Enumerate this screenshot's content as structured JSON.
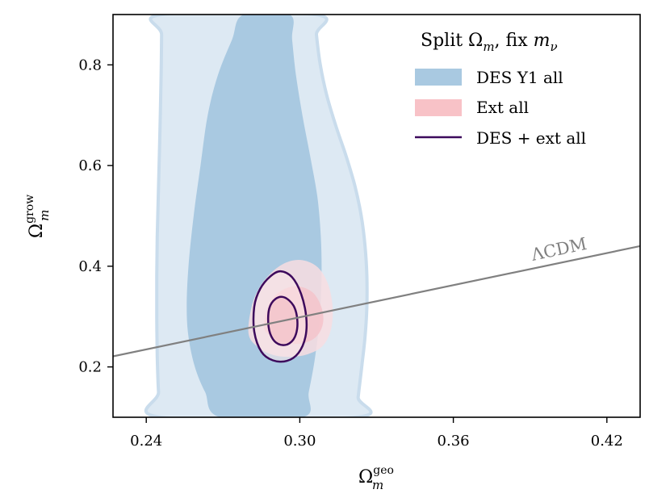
{
  "chart_data": {
    "type": "contour",
    "title": "",
    "xlabel_base": "Ω",
    "xlabel_sub": "m",
    "xlabel_sup": "geo",
    "ylabel_base": "Ω",
    "ylabel_sub": "m",
    "ylabel_sup": "grow",
    "xlim": [
      0.227,
      0.433
    ],
    "ylim": [
      0.1,
      0.9
    ],
    "xticks": [
      0.24,
      0.3,
      0.36,
      0.42
    ],
    "xtick_labels": [
      "0.24",
      "0.30",
      "0.36",
      "0.42"
    ],
    "yticks": [
      0.2,
      0.4,
      0.6,
      0.8
    ],
    "ytick_labels": [
      "0.2",
      "0.4",
      "0.6",
      "0.8"
    ],
    "legend": {
      "title_text": "Split Ω",
      "title_sub": "m",
      "title_mid": ", fix ",
      "title_var": "m",
      "title_var_sub": "ν",
      "placement": "top-right",
      "entries": [
        {
          "label": "DES Y1 all",
          "style": "patch"
        },
        {
          "label": "Ext all",
          "style": "patch"
        },
        {
          "label": "DES + ext all",
          "style": "line"
        }
      ]
    },
    "colors": {
      "des_outer": "#dde9f3",
      "des_outer_edge": "#c9dcec",
      "des_inner": "#a9c9e1",
      "ext_outer": "#f8dde0",
      "ext_inner": "#f4c3ca",
      "combined": "#3d0a5c",
      "lcdm": "#808080",
      "legend_des": "#a9c9e1",
      "legend_ext": "#f8c2c7"
    },
    "lcdm_line": {
      "label": "ΛCDM",
      "x": [
        0.227,
        0.433
      ],
      "y": [
        0.221,
        0.44
      ]
    },
    "series": [
      {
        "name": "DES Y1 all",
        "level": "95%",
        "points": [
          [
            0.2458,
            0.1
          ],
          [
            0.2448,
            0.15
          ],
          [
            0.2443,
            0.22
          ],
          [
            0.2441,
            0.3
          ],
          [
            0.2441,
            0.38
          ],
          [
            0.2443,
            0.46
          ],
          [
            0.2447,
            0.54
          ],
          [
            0.2451,
            0.62
          ],
          [
            0.2455,
            0.7
          ],
          [
            0.2458,
            0.78
          ],
          [
            0.246,
            0.86
          ],
          [
            0.2461,
            0.9
          ],
          [
            0.306,
            0.9
          ],
          [
            0.3065,
            0.86
          ],
          [
            0.308,
            0.8
          ],
          [
            0.3105,
            0.74
          ],
          [
            0.314,
            0.68
          ],
          [
            0.318,
            0.62
          ],
          [
            0.3215,
            0.56
          ],
          [
            0.324,
            0.5
          ],
          [
            0.3255,
            0.44
          ],
          [
            0.3262,
            0.38
          ],
          [
            0.3262,
            0.32
          ],
          [
            0.3255,
            0.26
          ],
          [
            0.3242,
            0.2
          ],
          [
            0.3228,
            0.14
          ],
          [
            0.322,
            0.1
          ]
        ]
      },
      {
        "name": "DES Y1 all",
        "level": "68%",
        "points": [
          [
            0.269,
            0.1
          ],
          [
            0.263,
            0.15
          ],
          [
            0.259,
            0.2
          ],
          [
            0.2565,
            0.26
          ],
          [
            0.2558,
            0.32
          ],
          [
            0.2565,
            0.4
          ],
          [
            0.2585,
            0.5
          ],
          [
            0.2612,
            0.6
          ],
          [
            0.264,
            0.7
          ],
          [
            0.268,
            0.78
          ],
          [
            0.2735,
            0.85
          ],
          [
            0.278,
            0.9
          ],
          [
            0.296,
            0.9
          ],
          [
            0.297,
            0.85
          ],
          [
            0.2985,
            0.78
          ],
          [
            0.301,
            0.7
          ],
          [
            0.304,
            0.62
          ],
          [
            0.3068,
            0.54
          ],
          [
            0.3082,
            0.46
          ],
          [
            0.3085,
            0.38
          ],
          [
            0.3078,
            0.3
          ],
          [
            0.306,
            0.22
          ],
          [
            0.3035,
            0.15
          ],
          [
            0.3012,
            0.1
          ]
        ]
      },
      {
        "name": "Ext all",
        "level": "95%",
        "points": [
          [
            0.28,
            0.265
          ],
          [
            0.2812,
            0.32
          ],
          [
            0.2845,
            0.36
          ],
          [
            0.2895,
            0.39
          ],
          [
            0.295,
            0.408
          ],
          [
            0.301,
            0.412
          ],
          [
            0.307,
            0.398
          ],
          [
            0.311,
            0.365
          ],
          [
            0.3128,
            0.32
          ],
          [
            0.3122,
            0.275
          ],
          [
            0.309,
            0.242
          ],
          [
            0.303,
            0.225
          ],
          [
            0.296,
            0.22
          ],
          [
            0.2895,
            0.224
          ],
          [
            0.284,
            0.238
          ]
        ]
      },
      {
        "name": "Ext all",
        "level": "68%",
        "points": [
          [
            0.286,
            0.28
          ],
          [
            0.288,
            0.325
          ],
          [
            0.293,
            0.352
          ],
          [
            0.299,
            0.36
          ],
          [
            0.305,
            0.348
          ],
          [
            0.3085,
            0.318
          ],
          [
            0.309,
            0.285
          ],
          [
            0.306,
            0.258
          ],
          [
            0.3,
            0.246
          ],
          [
            0.2935,
            0.25
          ],
          [
            0.2885,
            0.262
          ]
        ]
      },
      {
        "name": "DES + ext all",
        "level": "95%",
        "points": [
          [
            0.2822,
            0.27
          ],
          [
            0.2822,
            0.32
          ],
          [
            0.2845,
            0.355
          ],
          [
            0.2885,
            0.38
          ],
          [
            0.2925,
            0.39
          ],
          [
            0.297,
            0.378
          ],
          [
            0.3005,
            0.345
          ],
          [
            0.3025,
            0.3
          ],
          [
            0.3022,
            0.26
          ],
          [
            0.2995,
            0.228
          ],
          [
            0.295,
            0.212
          ],
          [
            0.2895,
            0.213
          ],
          [
            0.285,
            0.23
          ]
        ]
      },
      {
        "name": "DES + ext all",
        "level": "68%",
        "points": [
          [
            0.2878,
            0.28
          ],
          [
            0.288,
            0.315
          ],
          [
            0.2905,
            0.335
          ],
          [
            0.294,
            0.338
          ],
          [
            0.2975,
            0.322
          ],
          [
            0.299,
            0.295
          ],
          [
            0.2985,
            0.265
          ],
          [
            0.296,
            0.247
          ],
          [
            0.2925,
            0.244
          ],
          [
            0.2895,
            0.255
          ]
        ]
      }
    ]
  }
}
